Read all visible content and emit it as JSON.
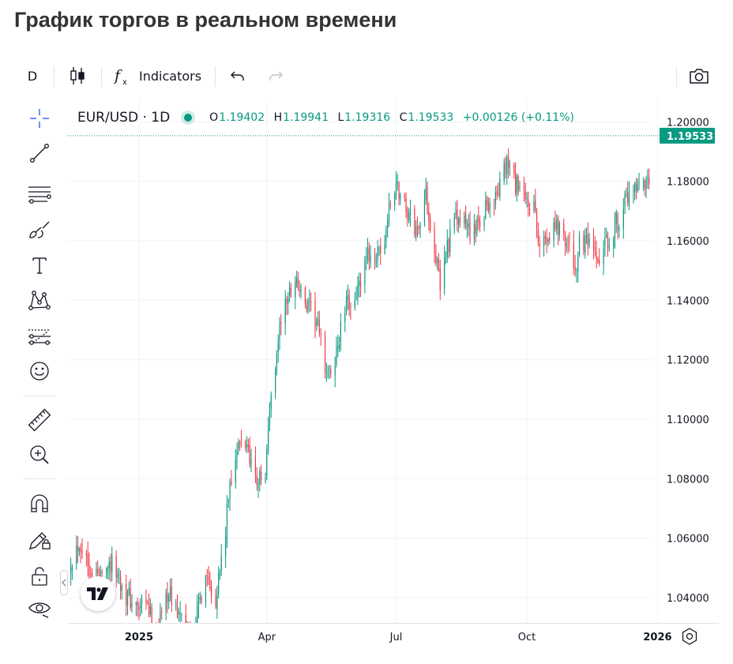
{
  "page": {
    "title": "График торгов в реальном времени"
  },
  "toolbar": {
    "interval": "D",
    "indicators_label": "Indicators",
    "icons": [
      "candles-icon",
      "function-icon",
      "undo-icon",
      "redo-icon",
      "camera-icon"
    ]
  },
  "left_toolbar": {
    "tools": [
      "crosshair-icon",
      "trend-line-icon",
      "horizontal-lines-icon",
      "brush-icon",
      "text-icon",
      "pattern-icon",
      "forecast-icon",
      "emoji-icon",
      "ruler-icon",
      "zoom-icon",
      "magnet-icon",
      "lock-drawing-icon",
      "unlock-icon",
      "eye-icon"
    ]
  },
  "legend": {
    "symbol": "EUR/USD · 1D",
    "o_label": "O",
    "o_value": "1.19402",
    "h_label": "H",
    "h_value": "1.19941",
    "l_label": "L",
    "l_value": "1.19316",
    "c_label": "C",
    "c_value": "1.19533",
    "change": "+0.00126 (+0.11%)"
  },
  "colors": {
    "up": "#089981",
    "down": "#f23645",
    "grid": "#f0f3fa",
    "text": "#131722"
  },
  "chart_data": {
    "type": "candlestick",
    "symbol": "EUR/USD",
    "interval": "1D",
    "last_price": 1.19533,
    "last_price_label": "1.19533",
    "ylim": [
      1.0315,
      1.2075
    ],
    "y_ticks": [
      1.2,
      1.18,
      1.16,
      1.14,
      1.12,
      1.1,
      1.08,
      1.06,
      1.04
    ],
    "y_tick_labels": [
      "1.20000",
      "1.18000",
      "1.16000",
      "1.14000",
      "1.12000",
      "1.10000",
      "1.08000",
      "1.06000",
      "1.04000"
    ],
    "x_range": [
      "2024-11-12",
      "2026-02-12"
    ],
    "x_ticks": [
      {
        "date": "2025-01-01",
        "label": "2025",
        "bold": true
      },
      {
        "date": "2025-04-01",
        "label": "Apr",
        "bold": false
      },
      {
        "date": "2025-07-01",
        "label": "Jul",
        "bold": false
      },
      {
        "date": "2025-10-01",
        "label": "Oct",
        "bold": false
      },
      {
        "date": "2026-01-01",
        "label": "2026",
        "bold": true
      }
    ],
    "close_path": [
      [
        "2024-11-14",
        1.053
      ],
      [
        "2024-11-20",
        1.059
      ],
      [
        "2024-11-27",
        1.051
      ],
      [
        "2024-12-04",
        1.047
      ],
      [
        "2024-12-10",
        1.052
      ],
      [
        "2024-12-16",
        1.049
      ],
      [
        "2024-12-23",
        1.041
      ],
      [
        "2024-12-31",
        1.036
      ],
      [
        "2025-01-07",
        1.037
      ],
      [
        "2025-01-13",
        1.028
      ],
      [
        "2025-01-21",
        1.042
      ],
      [
        "2025-01-28",
        1.036
      ],
      [
        "2025-02-03",
        1.028
      ],
      [
        "2025-02-10",
        1.032
      ],
      [
        "2025-02-17",
        1.049
      ],
      [
        "2025-02-24",
        1.04
      ],
      [
        "2025-03-03",
        1.062
      ],
      [
        "2025-03-06",
        1.079
      ],
      [
        "2025-03-11",
        1.09
      ],
      [
        "2025-03-18",
        1.092
      ],
      [
        "2025-03-24",
        1.08
      ],
      [
        "2025-03-31",
        1.08
      ],
      [
        "2025-04-03",
        1.104
      ],
      [
        "2025-04-11",
        1.134
      ],
      [
        "2025-04-21",
        1.148
      ],
      [
        "2025-04-28",
        1.138
      ],
      [
        "2025-05-06",
        1.133
      ],
      [
        "2025-05-12",
        1.118
      ],
      [
        "2025-05-16",
        1.113
      ],
      [
        "2025-05-26",
        1.137
      ],
      [
        "2025-06-05",
        1.144
      ],
      [
        "2025-06-12",
        1.156
      ],
      [
        "2025-06-20",
        1.154
      ],
      [
        "2025-06-27",
        1.172
      ],
      [
        "2025-07-01",
        1.179
      ],
      [
        "2025-07-08",
        1.171
      ],
      [
        "2025-07-15",
        1.163
      ],
      [
        "2025-07-22",
        1.175
      ],
      [
        "2025-07-28",
        1.158
      ],
      [
        "2025-08-01",
        1.144
      ],
      [
        "2025-08-05",
        1.157
      ],
      [
        "2025-08-12",
        1.167
      ],
      [
        "2025-08-19",
        1.165
      ],
      [
        "2025-08-26",
        1.163
      ],
      [
        "2025-09-02",
        1.172
      ],
      [
        "2025-09-09",
        1.174
      ],
      [
        "2025-09-17",
        1.186
      ],
      [
        "2025-09-23",
        1.179
      ],
      [
        "2025-09-30",
        1.173
      ],
      [
        "2025-10-06",
        1.171
      ],
      [
        "2025-10-09",
        1.158
      ],
      [
        "2025-10-14",
        1.161
      ],
      [
        "2025-10-20",
        1.166
      ],
      [
        "2025-10-27",
        1.163
      ],
      [
        "2025-11-04",
        1.15
      ],
      [
        "2025-11-07",
        1.158
      ],
      [
        "2025-11-12",
        1.159
      ],
      [
        "2025-11-20",
        1.152
      ],
      [
        "2025-11-27",
        1.16
      ],
      [
        "2025-12-03",
        1.166
      ],
      [
        "2025-12-11",
        1.174
      ],
      [
        "2025-12-17",
        1.176
      ],
      [
        "2025-12-24",
        1.178
      ],
      [
        "2025-12-31",
        1.174
      ],
      [
        "2026-01-07",
        1.168
      ],
      [
        "2026-01-15",
        1.162
      ],
      [
        "2026-01-20",
        1.167
      ],
      [
        "2026-01-27",
        1.185
      ],
      [
        "2026-01-29",
        1.195
      ]
    ]
  }
}
